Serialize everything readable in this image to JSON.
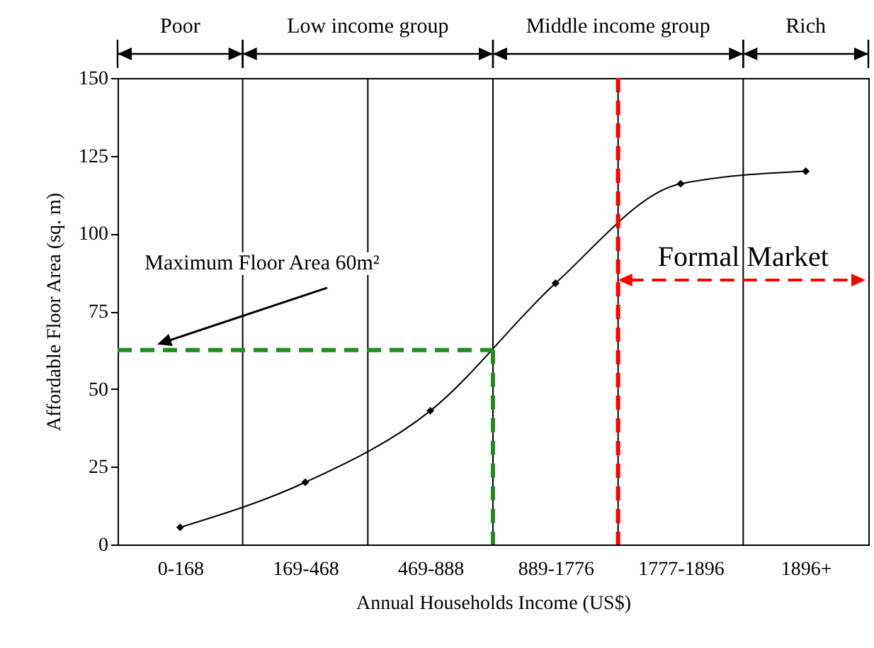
{
  "chart_data": {
    "type": "line",
    "xlabel": "Annual Households Income (US$)",
    "ylabel": "Affordable Floor Area (sq. m)",
    "categories": [
      "0-168",
      "169-468",
      "469-888",
      "889-1776",
      "1777-1896",
      "1896+"
    ],
    "series": [
      {
        "color": "#000000",
        "values": [
          5.5,
          20,
          43,
          84,
          116,
          120
        ]
      }
    ],
    "ylim": [
      0,
      150
    ],
    "yticks": [
      0,
      25,
      50,
      75,
      100,
      125,
      150
    ],
    "grid": "x",
    "marker": "diamond",
    "line_style": "solid",
    "ref_lines": [
      {
        "axis": "y",
        "value": 62.5,
        "color": "#228b22",
        "line_style": "dashed",
        "label": "Maximum Floor Area 60m²"
      },
      {
        "axis": "x",
        "value": "889-1776",
        "color": "#228b22",
        "line_style": "dashed"
      },
      {
        "axis": "x",
        "value": "1777-1896",
        "color": "#ff0000",
        "line_style": "dashed",
        "label": "Formal Market"
      }
    ],
    "annotations": [
      "Poor",
      "Low income group",
      "Middle income group",
      "Rich"
    ]
  }
}
